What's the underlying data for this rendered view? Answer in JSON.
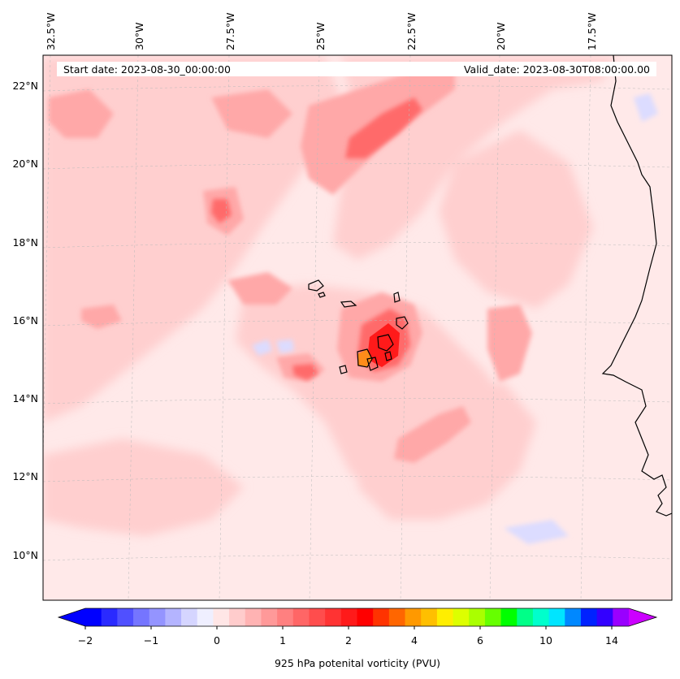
{
  "header": {
    "start_date": "Start date: 2023-08-30_00:00:00",
    "valid_date": "Valid_date: 2023-08-30T08:00:00.00"
  },
  "lon_ticks": [
    "32.5°W",
    "30°W",
    "27.5°W",
    "25°W",
    "22.5°W",
    "20°W",
    "17.5°W"
  ],
  "lat_ticks": [
    "22°N",
    "20°N",
    "18°N",
    "16°N",
    "14°N",
    "12°N",
    "10°N"
  ],
  "colorbar": {
    "label": "925 hPa potenital vorticity (PVU)",
    "tick_labels": [
      "−2",
      "−1",
      "0",
      "1",
      "2",
      "4",
      "6",
      "10",
      "14"
    ],
    "colors": [
      "#0000ff",
      "#2a2aff",
      "#5050ff",
      "#7575ff",
      "#9494ff",
      "#b4b4ff",
      "#d5d5ff",
      "#efefff",
      "#ffe6e6",
      "#ffcccc",
      "#ffb3b3",
      "#ff9999",
      "#ff8080",
      "#ff6666",
      "#ff4d4d",
      "#ff3333",
      "#ff1a1a",
      "#ff0000",
      "#ff3300",
      "#ff6600",
      "#ff9900",
      "#ffbf00",
      "#ffee00",
      "#ddff00",
      "#aaff00",
      "#66ff00",
      "#00ff00",
      "#00ff88",
      "#00ffcc",
      "#00e5ff",
      "#0088ff",
      "#0022ff",
      "#3300ff",
      "#9900ff"
    ],
    "under_color": "#0000ff",
    "over_color": "#cc00ff"
  },
  "colors": {
    "map_background": "#ffe9e9",
    "pv_light": "#ffcfcf",
    "pv_medium": "#ffa8a8",
    "pv_strong": "#ff6a6a",
    "pv_max": "#ff1a1a",
    "pv_orange": "#ff8c1a",
    "pv_negative": "#dcdcff",
    "coastline": "#000000",
    "gridline": "#bbbbbb"
  }
}
